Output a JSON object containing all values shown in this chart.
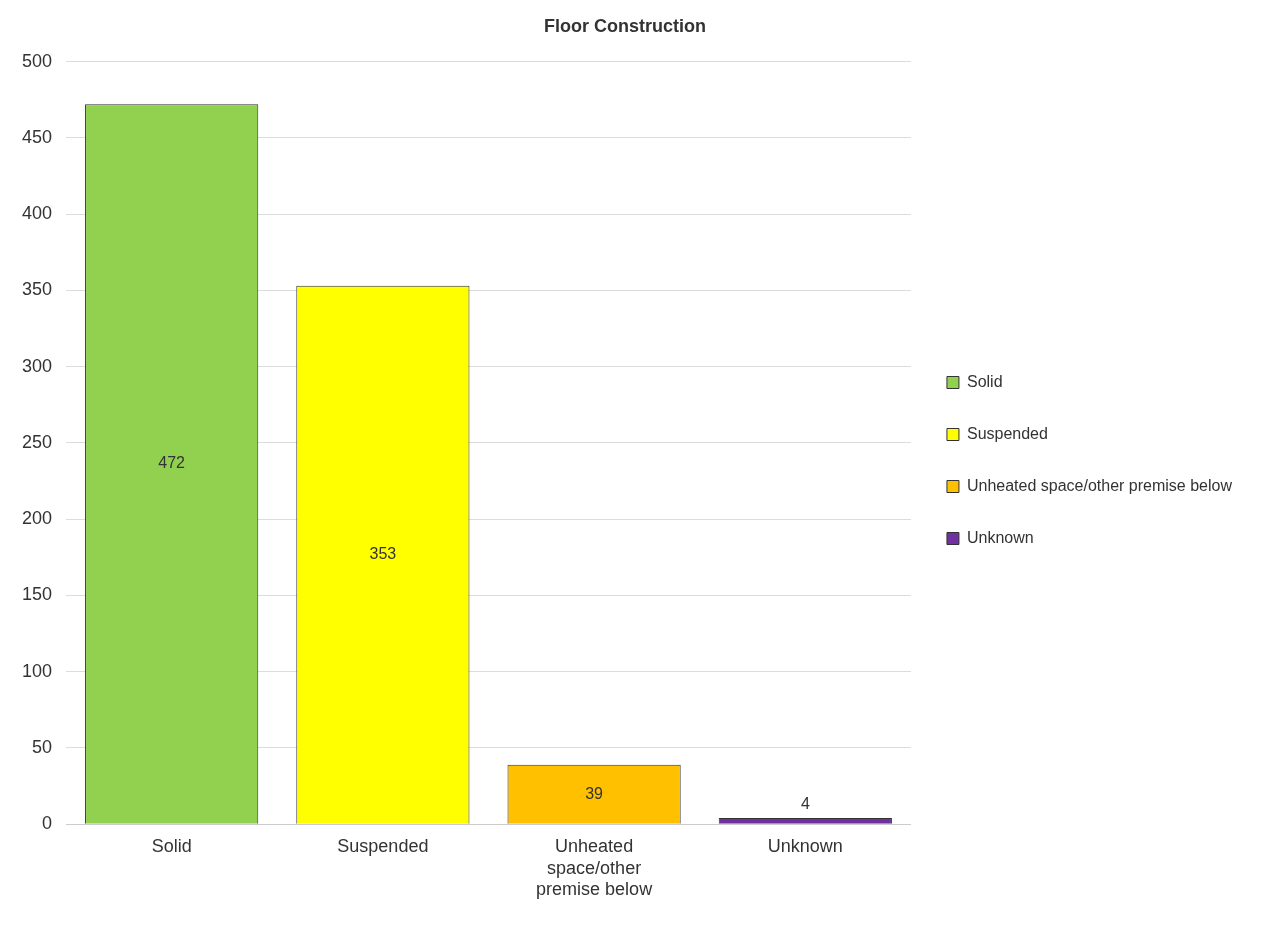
{
  "chart_data": {
    "type": "bar",
    "title": "Floor Construction",
    "categories": [
      "Solid",
      "Suspended",
      "Unheated space/other premise below",
      "Unknown"
    ],
    "series": [
      {
        "name": "Solid",
        "color": "#92d050",
        "values": [
          472,
          null,
          null,
          null
        ]
      },
      {
        "name": "Suspended",
        "color": "#ffff00",
        "values": [
          null,
          353,
          null,
          null
        ]
      },
      {
        "name": "Unheated space/other premise below",
        "color": "#ffc000",
        "values": [
          null,
          null,
          39,
          null
        ]
      },
      {
        "name": "Unknown",
        "color": "#7030a0",
        "values": [
          null,
          null,
          null,
          4
        ]
      }
    ],
    "ylim": [
      0,
      500
    ],
    "yticks": [
      0,
      50,
      100,
      150,
      200,
      250,
      300,
      350,
      400,
      450,
      500
    ],
    "grid": "y",
    "legend": "right",
    "data_labels": true
  }
}
